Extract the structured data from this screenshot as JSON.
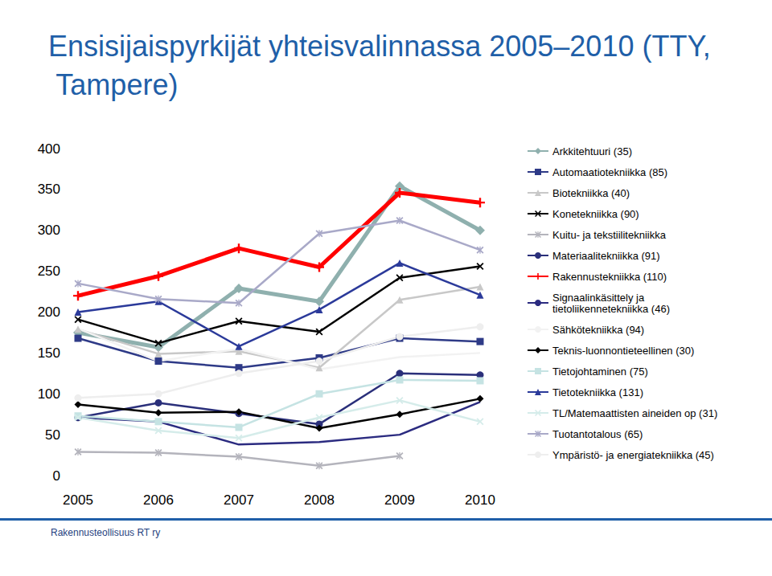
{
  "chart_data": {
    "type": "line",
    "title": "Ensisijaispyrkijät yhteisvalinnassa 2005–2010 (TTY, Tampere)",
    "annotations": [
      "Rakennusteollisuus RT ry"
    ],
    "categories": [
      "2005",
      "2006",
      "2007",
      "2008",
      "2009",
      "2010"
    ],
    "ylim": [
      0,
      400
    ],
    "yticks": [
      0,
      50,
      100,
      150,
      200,
      250,
      300,
      350,
      400
    ],
    "grid": false,
    "legend": "right",
    "series": [
      {
        "name": "Arkkitehtuuri (35)",
        "color": "#8fb0ae",
        "marker": "diamond",
        "line_style": "thick",
        "values": [
          175,
          157,
          229,
          213,
          354,
          300
        ]
      },
      {
        "name": "Automaatiotekniikka (85)",
        "color": "#2e3a87",
        "marker": "square",
        "line_style": "solid",
        "values": [
          168,
          140,
          132,
          144,
          168,
          164
        ]
      },
      {
        "name": "Biotekniikka (40)",
        "color": "#c8c8c8",
        "marker": "triangle",
        "line_style": "solid",
        "values": [
          179,
          149,
          152,
          132,
          215,
          231
        ]
      },
      {
        "name": "Konetekniikka (90)",
        "color": "#000000",
        "marker": "x",
        "line_style": "solid",
        "values": [
          191,
          162,
          189,
          176,
          242,
          256
        ]
      },
      {
        "name": "Kuitu- ja tekstiilitekniikka",
        "color": "#b4b4bc",
        "marker": "asterisk",
        "line_style": "solid",
        "values": [
          29,
          28,
          23,
          12,
          24,
          null
        ]
      },
      {
        "name": "Materiaalitekniikka (91)",
        "color": "#2a2f7a",
        "marker": "circle",
        "line_style": "solid",
        "values": [
          71,
          89,
          76,
          63,
          125,
          123
        ]
      },
      {
        "name": "Rakennustekniikka (110)",
        "color": "#ff0000",
        "marker": "plus",
        "line_style": "thick",
        "values": [
          220,
          244,
          278,
          255,
          346,
          334
        ]
      },
      {
        "name": "Signaalinkäsittely ja tietoliikennetekniikka (46)",
        "color": "#2b2b80",
        "marker": "none",
        "line_style": "solid",
        "values": [
          71,
          66,
          38,
          41,
          50,
          90
        ]
      },
      {
        "name": "Sähkötekniikka (94)",
        "color": "#f2f2f2",
        "marker": "none",
        "line_style": "solid",
        "values": [
          180,
          140,
          155,
          130,
          145,
          150
        ]
      },
      {
        "name": "Teknis-luonnontieteellinen (30)",
        "color": "#000000",
        "marker": "diamond",
        "line_style": "solid",
        "values": [
          87,
          77,
          78,
          58,
          75,
          94
        ]
      },
      {
        "name": "Tietojohtaminen (75)",
        "color": "#c5e3e3",
        "marker": "square",
        "line_style": "solid",
        "values": [
          73,
          66,
          59,
          100,
          117,
          116
        ]
      },
      {
        "name": "Tietotekniikka (131)",
        "color": "#2b3a9a",
        "marker": "triangle",
        "line_style": "solid",
        "values": [
          200,
          213,
          158,
          203,
          260,
          221
        ]
      },
      {
        "name": "TL/Matemaattisten aineiden op (31)",
        "color": "#d5ecea",
        "marker": "x",
        "line_style": "solid",
        "values": [
          71,
          55,
          46,
          71,
          92,
          66
        ]
      },
      {
        "name": "Tuotantotalous (65)",
        "color": "#a9a9c8",
        "marker": "asterisk",
        "line_style": "solid",
        "values": [
          235,
          216,
          211,
          296,
          312,
          276
        ]
      },
      {
        "name": "Ympäristö- ja energiatekniikka (45)",
        "color": "#eeeeee",
        "marker": "circle",
        "line_style": "solid",
        "values": [
          95,
          100,
          125,
          140,
          170,
          182
        ]
      }
    ]
  }
}
